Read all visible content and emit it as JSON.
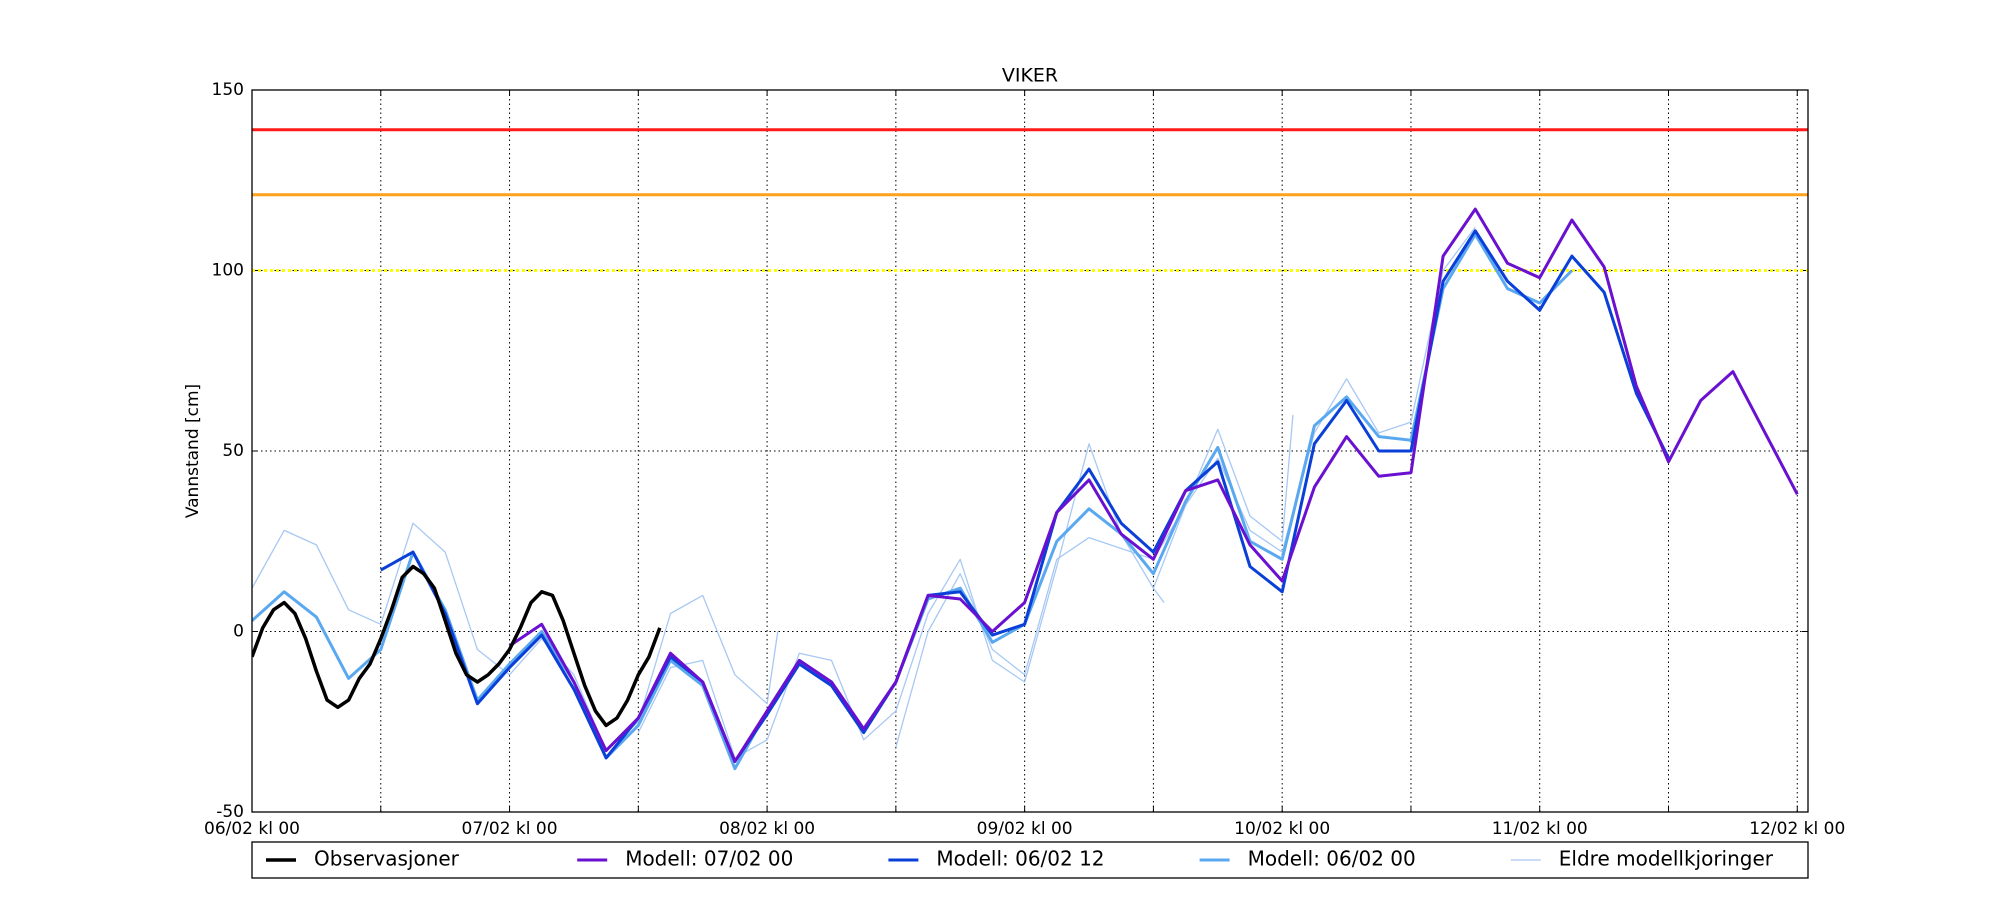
{
  "chart_data": {
    "type": "line",
    "title": "VIKER",
    "y_label": "Vannstand [cm]",
    "xlim": [
      0,
      145
    ],
    "ylim": [
      -50,
      150
    ],
    "yticks": [
      -50,
      0,
      50,
      100,
      150
    ],
    "xticks": [
      {
        "value": 0,
        "label": "06/02 kl 00"
      },
      {
        "value": 12,
        "label": null
      },
      {
        "value": 24,
        "label": "07/02 kl 00"
      },
      {
        "value": 36,
        "label": null
      },
      {
        "value": 48,
        "label": "08/02 kl 00"
      },
      {
        "value": 60,
        "label": null
      },
      {
        "value": 72,
        "label": "09/02 kl 00"
      },
      {
        "value": 84,
        "label": null
      },
      {
        "value": 96,
        "label": "10/02 kl 00"
      },
      {
        "value": 108,
        "label": null
      },
      {
        "value": 120,
        "label": "11/02 kl 00"
      },
      {
        "value": 132,
        "label": null
      },
      {
        "value": 144,
        "label": "12/02 kl 00"
      }
    ],
    "grid": true,
    "thresholds": [
      {
        "value": 139,
        "color": "#ff1a1a",
        "style": "solid"
      },
      {
        "value": 121,
        "color": "#ffa11a",
        "style": "solid"
      },
      {
        "value": 100,
        "color": "#ffff00",
        "style": "dotted"
      }
    ],
    "series": [
      {
        "name": "Observasjoner",
        "color": "#000000",
        "width": 3.5,
        "x": [
          0,
          1,
          2,
          3,
          4,
          5,
          6,
          7,
          8,
          9,
          10,
          11,
          12,
          13,
          14,
          15,
          16,
          17,
          18,
          19,
          20,
          21,
          22,
          23,
          24,
          25,
          26,
          27,
          28,
          29,
          30,
          31,
          32,
          33,
          34,
          35,
          36,
          37,
          38
        ],
        "values": [
          -7,
          1,
          6,
          8,
          5,
          -2,
          -11,
          -19,
          -21,
          -19,
          -13,
          -9,
          -2,
          6,
          15,
          18,
          16,
          12,
          3,
          -6,
          -12,
          -14,
          -12,
          -9,
          -5,
          1,
          8,
          11,
          10,
          3,
          -6,
          -15,
          -22,
          -26,
          -24,
          -19,
          -12,
          -7,
          1
        ]
      },
      {
        "name": "Modell: 07/02 00",
        "color": "#6a10d0",
        "width": 3,
        "x": [
          24,
          27,
          30,
          33,
          36,
          39,
          42,
          45,
          48,
          51,
          54,
          57,
          60,
          63,
          66,
          69,
          72,
          75,
          78,
          81,
          84,
          87,
          90,
          93,
          96,
          99,
          102,
          105,
          108,
          111,
          114,
          117,
          120,
          123,
          126,
          129,
          132,
          135,
          138,
          141,
          144
        ],
        "values": [
          -4,
          2,
          -14,
          -33,
          -24,
          -6,
          -14,
          -36,
          -22,
          -8,
          -14,
          -27,
          -14,
          10,
          9,
          0,
          8,
          33,
          42,
          27,
          20,
          39,
          42,
          24,
          14,
          40,
          54,
          43,
          44,
          104,
          117,
          102,
          98,
          114,
          101,
          68,
          47,
          64,
          72,
          55,
          38
        ]
      },
      {
        "name": "Modell: 06/02 12",
        "color": "#0a3fd8",
        "width": 3,
        "x": [
          12,
          15,
          18,
          21,
          24,
          27,
          30,
          33,
          36,
          39,
          42,
          45,
          48,
          51,
          54,
          57,
          60,
          63,
          66,
          69,
          72,
          75,
          78,
          81,
          84,
          87,
          90,
          93,
          96,
          99,
          102,
          105,
          108,
          111,
          114,
          117,
          120,
          123,
          126,
          129,
          132
        ],
        "values": [
          17,
          22,
          5,
          -20,
          -10,
          -1,
          -16,
          -35,
          -24,
          -7,
          -14,
          -36,
          -23,
          -9,
          -15,
          -28,
          -14,
          10,
          11,
          -1,
          2,
          33,
          45,
          30,
          22,
          39,
          47,
          18,
          11,
          52,
          64,
          50,
          50,
          97,
          111,
          97,
          89,
          104,
          94,
          66,
          48
        ]
      },
      {
        "name": "Modell: 06/02 00",
        "color": "#5aa8f0",
        "width": 3,
        "x": [
          0,
          3,
          6,
          9,
          12,
          15,
          18,
          21,
          24,
          27,
          30,
          33,
          36,
          39,
          42,
          45,
          48,
          51,
          54,
          57,
          60,
          63,
          66,
          69,
          72,
          75,
          78,
          81,
          84,
          87,
          90,
          93,
          96,
          99,
          102,
          105,
          108,
          111,
          114,
          117,
          120,
          123
        ],
        "values": [
          3,
          11,
          4,
          -13,
          -5,
          22,
          6,
          -19,
          -9,
          0,
          -14,
          -35,
          -26,
          -8,
          -15,
          -38,
          -22,
          -8,
          -14,
          -27,
          -14,
          9,
          12,
          -3,
          2,
          25,
          34,
          27,
          16,
          36,
          51,
          25,
          20,
          57,
          65,
          54,
          53,
          95,
          110,
          95,
          91,
          100
        ]
      },
      {
        "name": "Eldre modellkjoringer",
        "color": "#a8c8f4",
        "width": 1.3,
        "lines": [
          {
            "x": [
              0,
              3,
              6,
              9,
              12,
              15,
              18,
              21,
              24,
              27,
              30,
              33,
              36,
              39,
              42,
              45,
              48,
              49
            ],
            "values": [
              12,
              28,
              24,
              6,
              2,
              30,
              22,
              -5,
              -12,
              -2,
              -12,
              -33,
              -25,
              5,
              10,
              -12,
              -20,
              0
            ]
          },
          {
            "x": [
              36,
              39,
              42,
              45,
              48,
              51,
              54,
              57,
              60,
              63,
              66,
              69,
              72,
              75,
              78,
              81,
              84,
              85
            ],
            "values": [
              -28,
              -10,
              -8,
              -35,
              -30,
              -6,
              -8,
              -30,
              -22,
              5,
              20,
              -8,
              -14,
              18,
              52,
              27,
              12,
              8
            ]
          },
          {
            "x": [
              60,
              63,
              66,
              69,
              72,
              75,
              78,
              81,
              84,
              87,
              90,
              93,
              96,
              97
            ],
            "values": [
              -32,
              0,
              16,
              -5,
              -12,
              20,
              26,
              23,
              20,
              35,
              56,
              32,
              25,
              60
            ]
          },
          {
            "x": [
              84,
              87,
              90,
              93,
              96,
              99,
              102,
              105,
              108,
              111,
              114
            ],
            "values": [
              12,
              35,
              48,
              28,
              22,
              55,
              70,
              55,
              58,
              100,
              112
            ]
          }
        ]
      }
    ]
  }
}
